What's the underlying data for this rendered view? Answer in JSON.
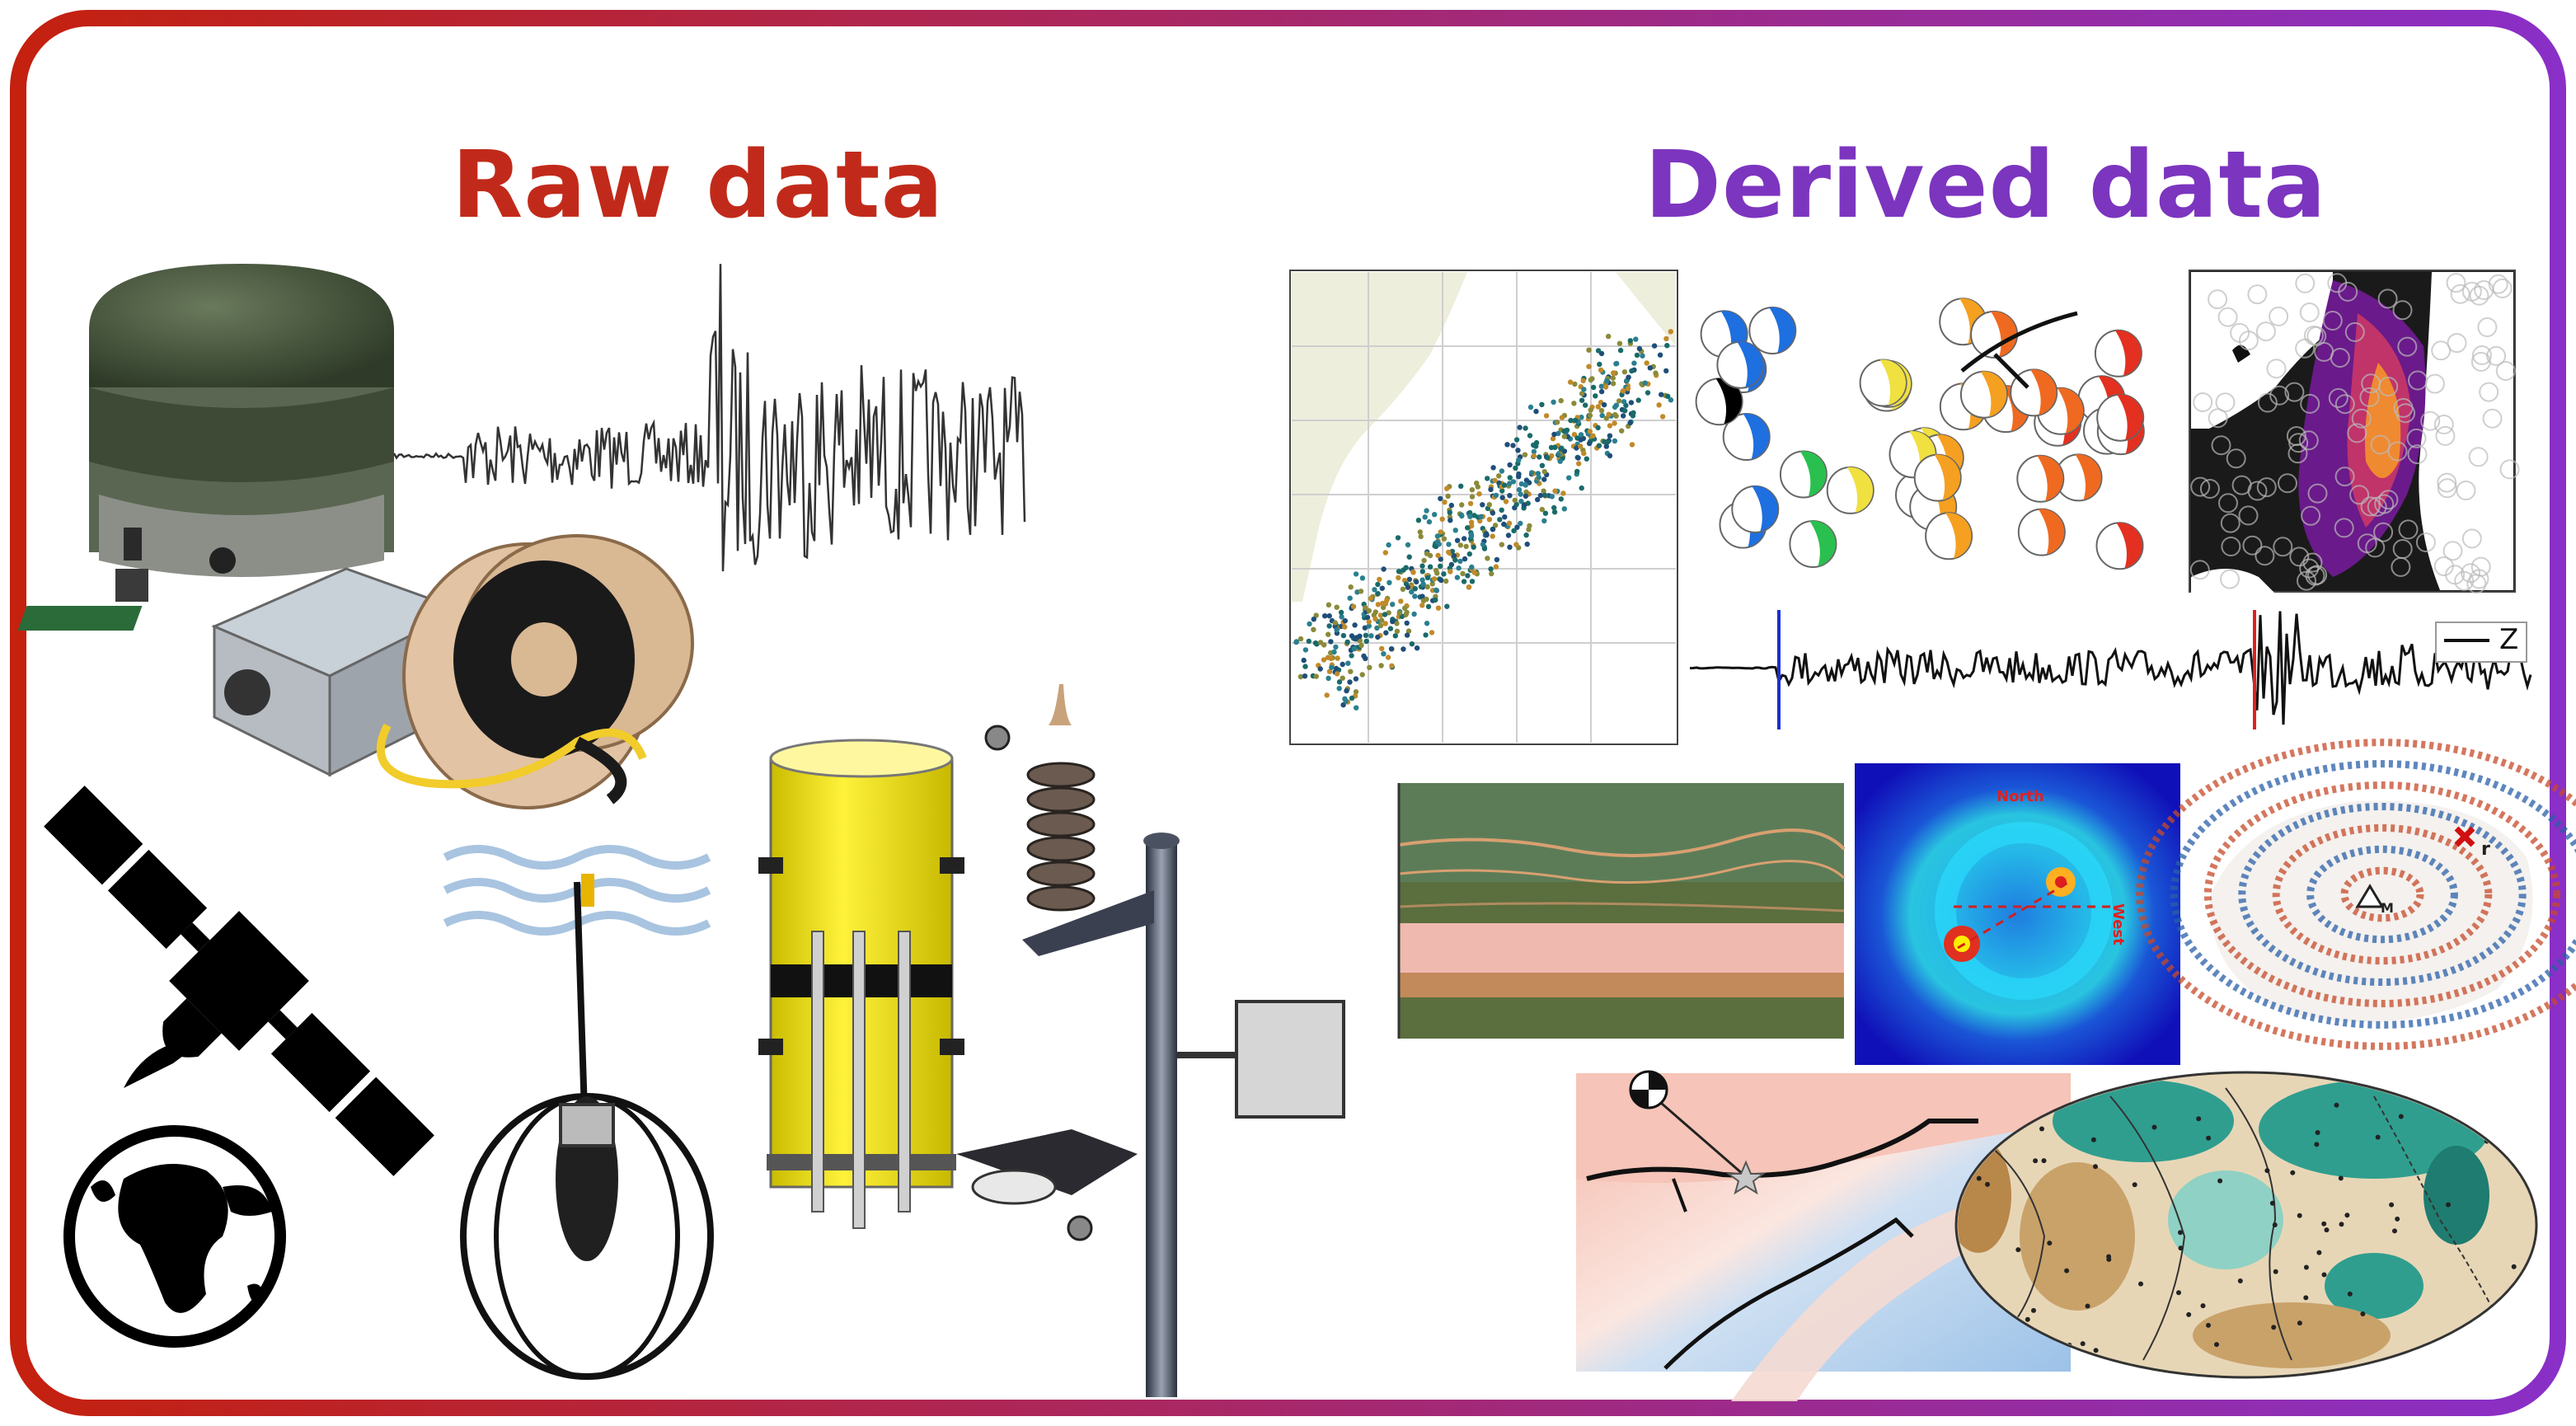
{
  "headings": {
    "raw": "Raw data",
    "derived": "Derived data"
  },
  "colors": {
    "raw_accent": "#c12a1a",
    "derived_accent": "#7c35bf",
    "seismometer_green": "#4a5a40",
    "sensor_yellow": "#f3e400"
  },
  "icons": [
    "seismometer",
    "digitizer-box",
    "fiber-optic-cable-spool",
    "satellite-icon",
    "globe-icon",
    "hydrophone",
    "ocean-bottom-seismometer",
    "weather-station",
    "seismic-waveform"
  ],
  "panels": {
    "waveform_legend": "Z",
    "beam_north_label": "North",
    "beam_west_label": "West",
    "wavefield_source_label": "r",
    "wavefield_station_label": "M"
  }
}
